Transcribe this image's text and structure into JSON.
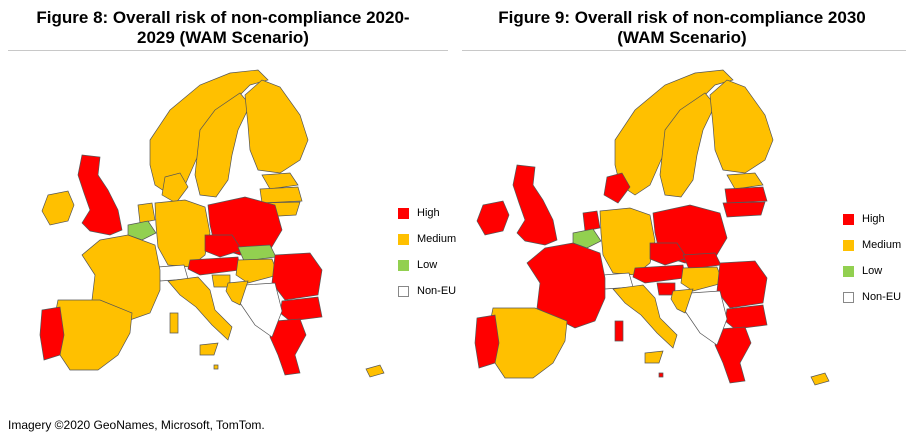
{
  "colors": {
    "high": "#ff0000",
    "medium": "#ffc000",
    "low": "#92d050",
    "non_eu": "#ffffff"
  },
  "figures": [
    {
      "title_line1": "Figure 8: Overall risk of non-compliance 2020-",
      "title_line2": "2029 (WAM Scenario)",
      "legend": [
        "High",
        "Medium",
        "Low",
        "Non-EU"
      ]
    },
    {
      "title_line1": "Figure 9: Overall risk of non-compliance 2030",
      "title_line2": "(WAM Scenario)",
      "legend": [
        "High",
        "Medium",
        "Low",
        "Non-EU"
      ]
    }
  ],
  "credit": "Imagery ©2020 GeoNames, Microsoft, TomTom."
}
